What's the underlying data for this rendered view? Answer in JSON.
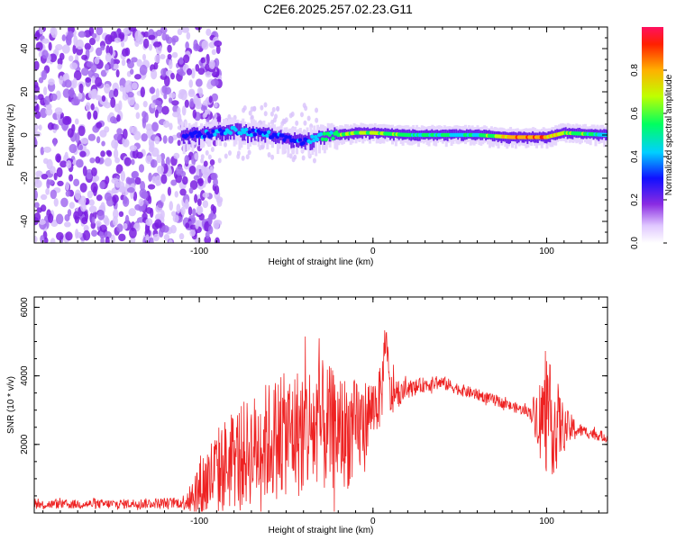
{
  "title": "C2E6.2025.257.02.23.G11",
  "chart_data": [
    {
      "type": "heatmap",
      "name": "spectrogram",
      "title": "C2E6.2025.257.02.23.G11",
      "xlabel": "Height of straight line (km)",
      "ylabel": "Frequency (Hz)",
      "xlim": [
        -195,
        135
      ],
      "ylim": [
        -50,
        50
      ],
      "x_ticks": [
        -100,
        0,
        100
      ],
      "y_ticks": [
        -40,
        -20,
        0,
        20,
        40
      ],
      "ridge": {
        "note": "main frequency ridge, estimated",
        "x": [
          -110,
          -100,
          -90,
          -80,
          -70,
          -60,
          -50,
          -40,
          -30,
          -20,
          -10,
          0,
          20,
          40,
          60,
          80,
          100,
          110,
          135
        ],
        "freq_hz": [
          0,
          0,
          1,
          2,
          1,
          0,
          -2,
          -3,
          -1,
          0,
          1,
          1,
          0,
          0,
          0,
          -1,
          -1,
          1,
          0
        ],
        "amplitude": [
          0.3,
          0.35,
          0.4,
          0.45,
          0.4,
          0.4,
          0.35,
          0.4,
          0.55,
          0.65,
          0.7,
          0.75,
          0.6,
          0.55,
          0.55,
          0.9,
          0.85,
          0.7,
          0.5
        ]
      },
      "noise_region": {
        "x_from": -195,
        "x_to": -100,
        "freq_from": -50,
        "freq_to": 50
      }
    },
    {
      "type": "line",
      "name": "snr",
      "xlabel": "Height of straight line (km)",
      "ylabel": "SNR (10 * v/v)",
      "xlim": [
        -195,
        135
      ],
      "ylim": [
        0,
        6300
      ],
      "x_ticks": [
        -100,
        0,
        100
      ],
      "y_ticks": [
        2000,
        4000,
        6000
      ],
      "color": "#ee2222",
      "series": [
        {
          "name": "SNR",
          "x": [
            -195,
            -150,
            -110,
            -100,
            -90,
            -80,
            -70,
            -60,
            -50,
            -40,
            -30,
            -20,
            -10,
            -5,
            0,
            5,
            7,
            10,
            15,
            20,
            30,
            40,
            50,
            60,
            70,
            80,
            90,
            100,
            105,
            110,
            120,
            135
          ],
          "y": [
            250,
            260,
            300,
            700,
            1200,
            1600,
            1800,
            2100,
            2300,
            2400,
            2500,
            2400,
            2300,
            2700,
            3100,
            3400,
            5200,
            3400,
            3500,
            3600,
            3750,
            3800,
            3600,
            3450,
            3300,
            3100,
            2950,
            2800,
            2600,
            2500,
            2400,
            2200
          ],
          "spread": [
            130,
            140,
            160,
            1000,
            1300,
            1500,
            1600,
            1800,
            1800,
            2000,
            2000,
            1700,
            1600,
            1200,
            900,
            900,
            600,
            700,
            400,
            250,
            220,
            200,
            180,
            170,
            160,
            150,
            150,
            1700,
            1500,
            600,
            180,
            150
          ]
        }
      ]
    },
    {
      "type": "colorbar",
      "name": "amplitude-colorbar",
      "label": "Normalized spectral amplitude",
      "range": [
        0.0,
        1.0
      ],
      "ticks": [
        "0.0",
        "0.2",
        "0.4",
        "0.6",
        "0.8"
      ],
      "tick_values": [
        0.0,
        0.2,
        0.4,
        0.6,
        0.8
      ]
    }
  ]
}
